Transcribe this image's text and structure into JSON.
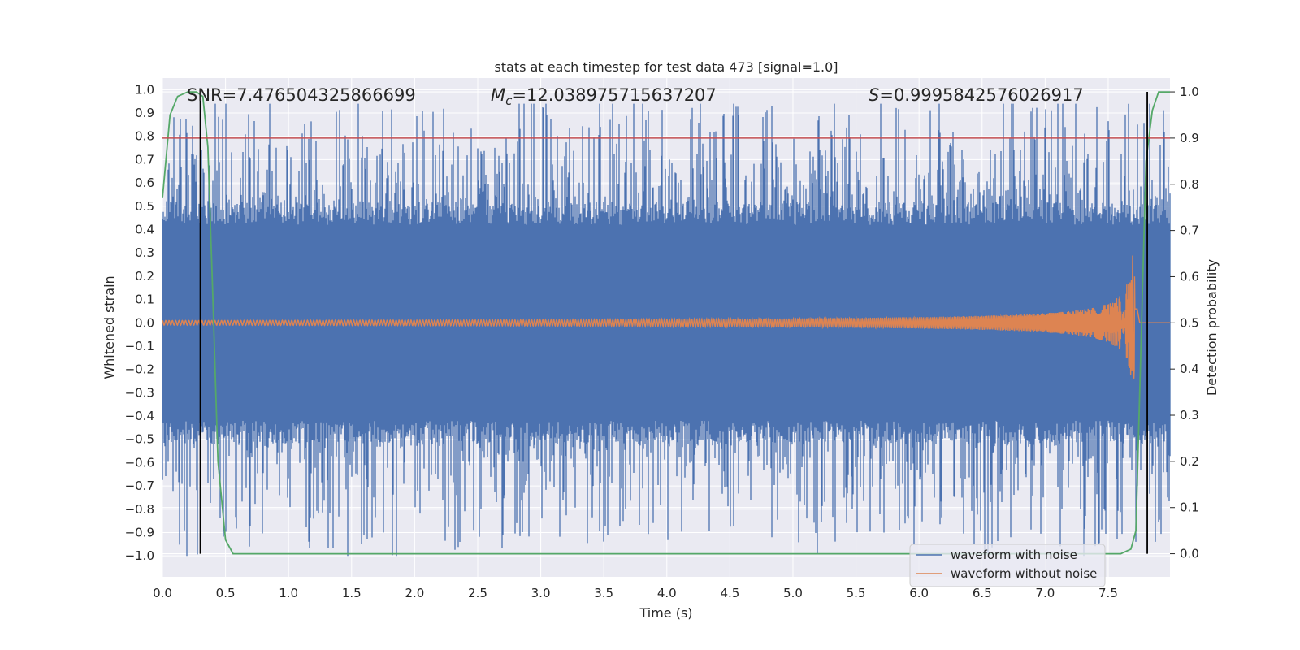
{
  "chart_data": {
    "type": "line",
    "title": "stats at each timestep for test data 473 [signal=1.0]",
    "xlabel": "Time (s)",
    "ylabel": "Whitened strain",
    "y2label": "Detection probability",
    "xlim": [
      0.0,
      7.99
    ],
    "ylim": [
      -1.09,
      1.05
    ],
    "y2lim": [
      -0.05,
      1.03
    ],
    "xticks": [
      "0.0",
      "0.5",
      "1.0",
      "1.5",
      "2.0",
      "2.5",
      "3.0",
      "3.5",
      "4.0",
      "4.5",
      "5.0",
      "5.5",
      "6.0",
      "6.5",
      "7.0",
      "7.5"
    ],
    "yticks": [
      "−1.0",
      "−0.9",
      "−0.8",
      "−0.7",
      "−0.6",
      "−0.5",
      "−0.4",
      "−0.3",
      "−0.2",
      "−0.1",
      "0.0",
      "0.1",
      "0.2",
      "0.3",
      "0.4",
      "0.5",
      "0.6",
      "0.7",
      "0.8",
      "0.9",
      "1.0"
    ],
    "y2ticks": [
      "0.0",
      "0.1",
      "0.2",
      "0.3",
      "0.4",
      "0.5",
      "0.6",
      "0.7",
      "0.8",
      "0.9",
      "1.0"
    ],
    "annotations": {
      "snr": "SNR=7.476504325866699",
      "mc_symbol": "M",
      "mc_sub": "c",
      "mc_value": "=12.038975715637207",
      "s_symbol": "S",
      "s_value": "=0.9995842576026917"
    },
    "legend": {
      "position": "lower-right",
      "entries": [
        {
          "name": "waveform with noise",
          "color": "#4c72b0"
        },
        {
          "name": "waveform without noise",
          "color": "#dd8452"
        }
      ]
    },
    "series": [
      {
        "name": "waveform with noise",
        "color": "#4c72b0",
        "band_center": 0.0,
        "core_amplitude": 0.42,
        "peak_max": 0.94,
        "peak_min": -1.0
      },
      {
        "name": "waveform without noise",
        "color": "#dd8452",
        "chirp_start_amplitude": 0.01,
        "chirp_peak_amplitude": 0.29,
        "merger_time": 7.7
      }
    ],
    "detection_probability": {
      "color": "#55a868",
      "x": [
        0.0,
        0.06,
        0.12,
        0.2,
        0.27,
        0.32,
        0.36,
        0.4,
        0.44,
        0.5,
        0.56,
        0.7,
        7.6,
        7.68,
        7.72,
        7.8,
        7.85,
        7.9,
        7.95,
        7.99
      ],
      "y": [
        0.77,
        0.95,
        0.99,
        1.0,
        1.0,
        0.99,
        0.88,
        0.55,
        0.2,
        0.03,
        0.0,
        0.0,
        0.0,
        0.01,
        0.05,
        0.85,
        0.96,
        1.0,
        1.0,
        1.0
      ]
    },
    "threshold": {
      "value": 0.9,
      "axis": "right",
      "color": "#c44e52"
    },
    "markers": {
      "times": [
        0.3,
        7.81
      ],
      "color": "#000000"
    },
    "grid": true,
    "colors": {
      "background": "#eaeaf2",
      "grid": "#ffffff"
    }
  }
}
